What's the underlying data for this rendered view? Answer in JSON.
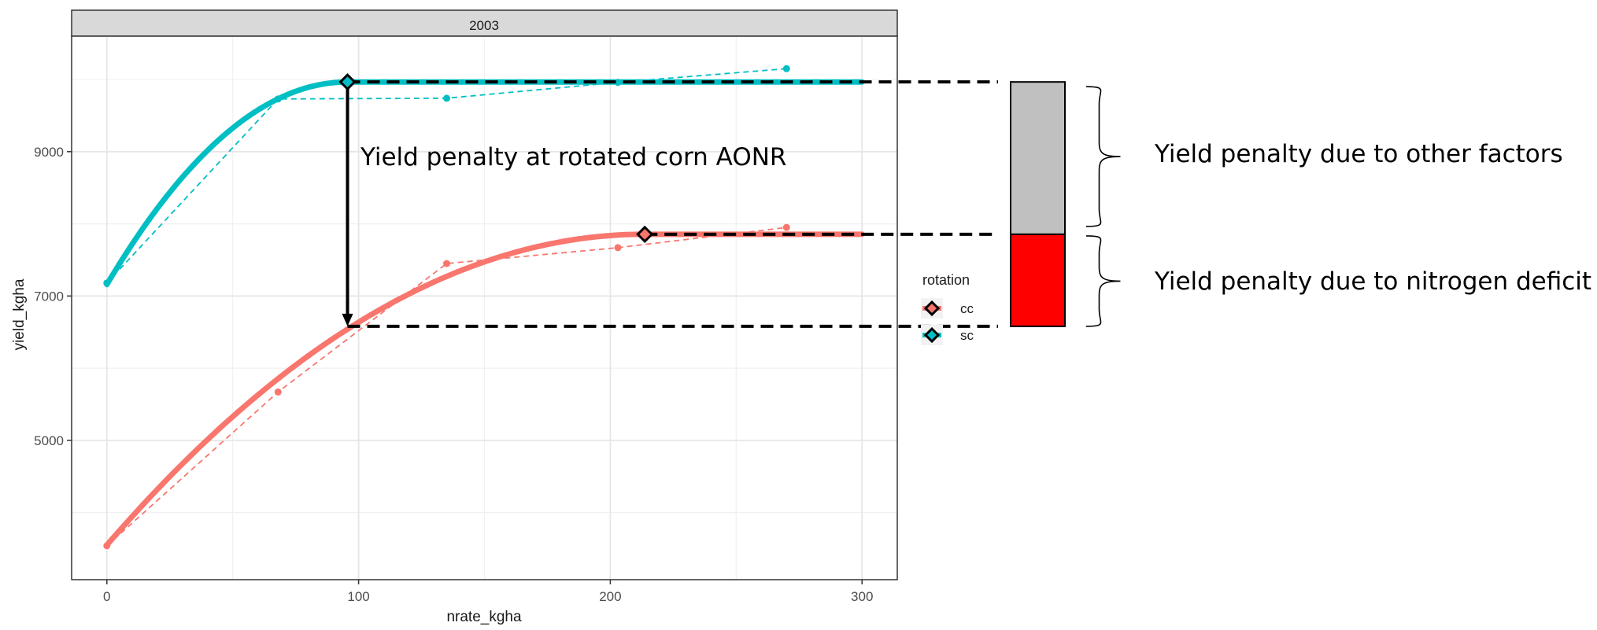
{
  "chart_data": {
    "type": "line",
    "facet_label": "2003",
    "xlabel": "nrate_kgha",
    "ylabel": "yield_kgha",
    "xlim": [
      -14,
      314
    ],
    "ylim": [
      3070,
      10600
    ],
    "x_ticks": [
      0,
      100,
      200,
      300
    ],
    "y_ticks": [
      5000,
      7000,
      9000
    ],
    "grid": true,
    "legend": {
      "title": "rotation",
      "placement": "right",
      "entries": [
        {
          "label": "cc",
          "color": "#F8766D"
        },
        {
          "label": "sc",
          "color": "#00BFC4"
        }
      ]
    },
    "series": [
      {
        "name": "cc",
        "color": "#F8766D",
        "fitted": {
          "model": "quadratic-plateau",
          "a": 3550,
          "b": 40.3,
          "c": -0.0943,
          "plateau_start": 213.7,
          "plateau": 7855,
          "x_range": [
            0,
            300
          ]
        },
        "observed": [
          {
            "x": 0,
            "y": 3540
          },
          {
            "x": 68,
            "y": 5670
          },
          {
            "x": 135,
            "y": 7450
          },
          {
            "x": 203,
            "y": 7670
          },
          {
            "x": 270,
            "y": 7950
          }
        ],
        "aonr": {
          "x": 213.7,
          "y": 7855
        }
      },
      {
        "name": "sc",
        "color": "#00BFC4",
        "fitted": {
          "model": "quadratic-plateau",
          "a": 7160,
          "b": 58.7,
          "c": -0.307,
          "plateau_start": 95.6,
          "plateau": 9966,
          "x_range": [
            0,
            300
          ]
        },
        "observed": [
          {
            "x": 0,
            "y": 7180
          },
          {
            "x": 68,
            "y": 9730
          },
          {
            "x": 135,
            "y": 9740
          },
          {
            "x": 203,
            "y": 9960
          },
          {
            "x": 270,
            "y": 10150
          }
        ],
        "aonr": {
          "x": 95.6,
          "y": 9966
        }
      }
    ],
    "annotations": {
      "arrow_text": "Yield penalty at rotated corn AONR",
      "penalty_levels": {
        "top": 9966,
        "middle": 7855,
        "bottom": 6580
      },
      "other_factors_text": "Yield penalty due to other factors",
      "nitrogen_text": "Yield penalty due to nitrogen deficit",
      "other_factors_color": "#C0C0C0",
      "nitrogen_color": "#FF0000"
    }
  }
}
